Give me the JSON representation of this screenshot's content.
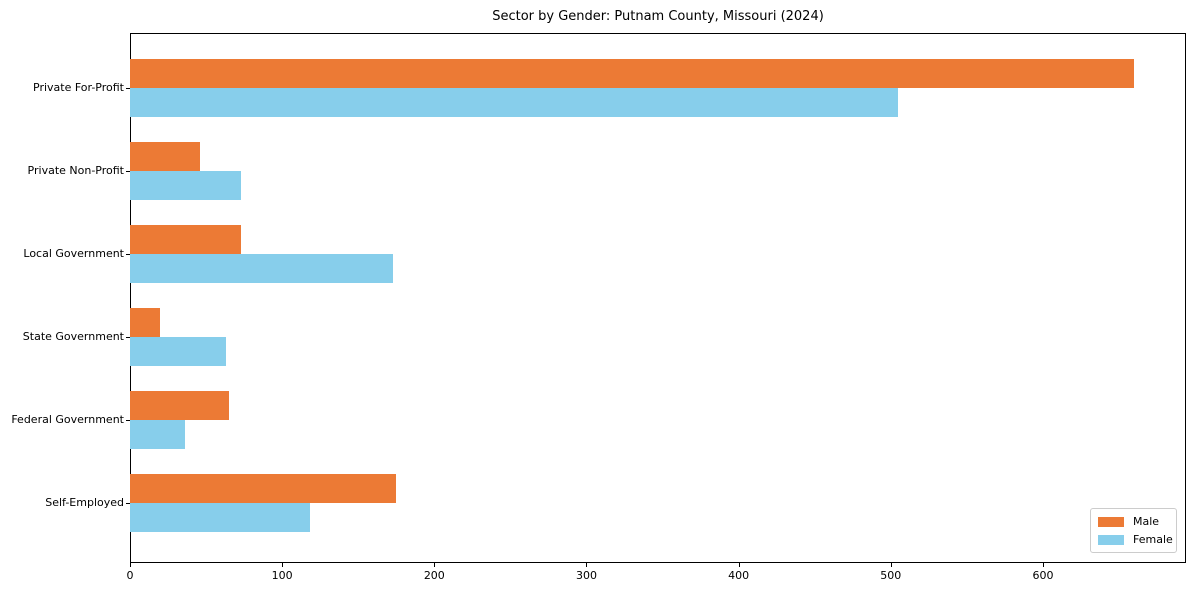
{
  "chart_data": {
    "type": "bar",
    "orientation": "horizontal",
    "title": "Sector by Gender: Putnam County, Missouri (2024)",
    "categories": [
      "Private For-Profit",
      "Private Non-Profit",
      "Local Government",
      "State Government",
      "Federal Government",
      "Self-Employed"
    ],
    "series": [
      {
        "name": "Male",
        "color": "#ec7a35",
        "values": [
          660,
          46,
          73,
          20,
          65,
          175
        ]
      },
      {
        "name": "Female",
        "color": "#87ceeb",
        "values": [
          505,
          73,
          173,
          63,
          36,
          118
        ]
      }
    ],
    "xlabel": "",
    "ylabel": "",
    "xlim": [
      0,
      694
    ],
    "xticks": [
      0,
      100,
      200,
      300,
      400,
      500,
      600
    ],
    "grid": false,
    "legend_position": "lower right",
    "background_color": "#ffffff",
    "axis_color": "#000000"
  }
}
